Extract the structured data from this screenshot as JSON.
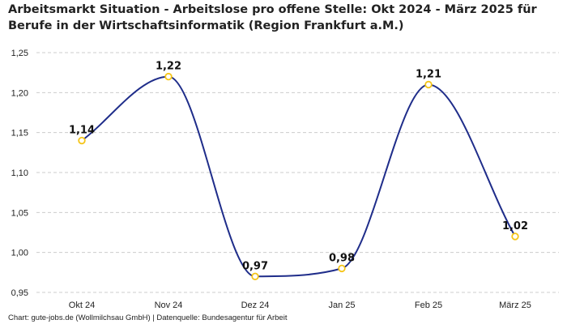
{
  "chart_data": {
    "type": "line",
    "title": "Arbeitsmarkt Situation - Arbeitslose pro offene Stelle: Okt 2024 - März 2025 für Berufe in der Wirtschaftsinformatik (Region Frankfurt a.M.)",
    "categories": [
      "Okt 24",
      "Nov 24",
      "Dez 24",
      "Jan 25",
      "Feb 25",
      "März 25"
    ],
    "values": [
      1.14,
      1.22,
      0.97,
      0.98,
      1.21,
      1.02
    ],
    "data_labels": [
      "1,14",
      "1,22",
      "0,97",
      "0,98",
      "1,21",
      "1,02"
    ],
    "y_ticks": [
      0.95,
      1.0,
      1.05,
      1.1,
      1.15,
      1.2,
      1.25
    ],
    "y_tick_labels": [
      "0,95",
      "1,00",
      "1,05",
      "1,10",
      "1,15",
      "1,20",
      "1,25"
    ],
    "ylim": [
      0.95,
      1.25
    ],
    "grid": true,
    "smooth": true,
    "line_color": "#1f2d8a",
    "marker_color": "#f5c518",
    "grid_color": "#cccccc"
  },
  "source_text": "Chart: gute-jobs.de (Wollmilchsau GmbH) | Datenquelle: Bundesagentur für Arbeit"
}
